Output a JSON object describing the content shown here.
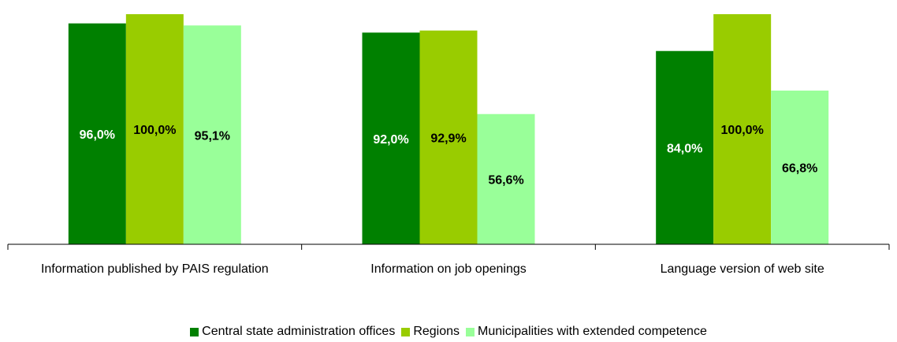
{
  "chart_data": {
    "type": "bar",
    "categories": [
      "Information published by PAIS regulation",
      "Information on job openings",
      "Language version of web site"
    ],
    "ylim": [
      0,
      100
    ],
    "series": [
      {
        "name": "Central state administration offices",
        "color": "#008000",
        "values": [
          96.0,
          92.0,
          84.0
        ],
        "value_labels": [
          "96,0%",
          "92,0%",
          "84,0%"
        ]
      },
      {
        "name": "Regions",
        "color": "#99cc00",
        "values": [
          100.0,
          92.9,
          100.0
        ],
        "value_labels": [
          "100,0%",
          "92,9%",
          "100,0%"
        ]
      },
      {
        "name": "Municipalities with extended competence",
        "color": "#99ff99",
        "values": [
          95.1,
          56.6,
          66.8
        ],
        "value_labels": [
          "95,1%",
          "56,6%",
          "66,8%"
        ]
      }
    ]
  }
}
